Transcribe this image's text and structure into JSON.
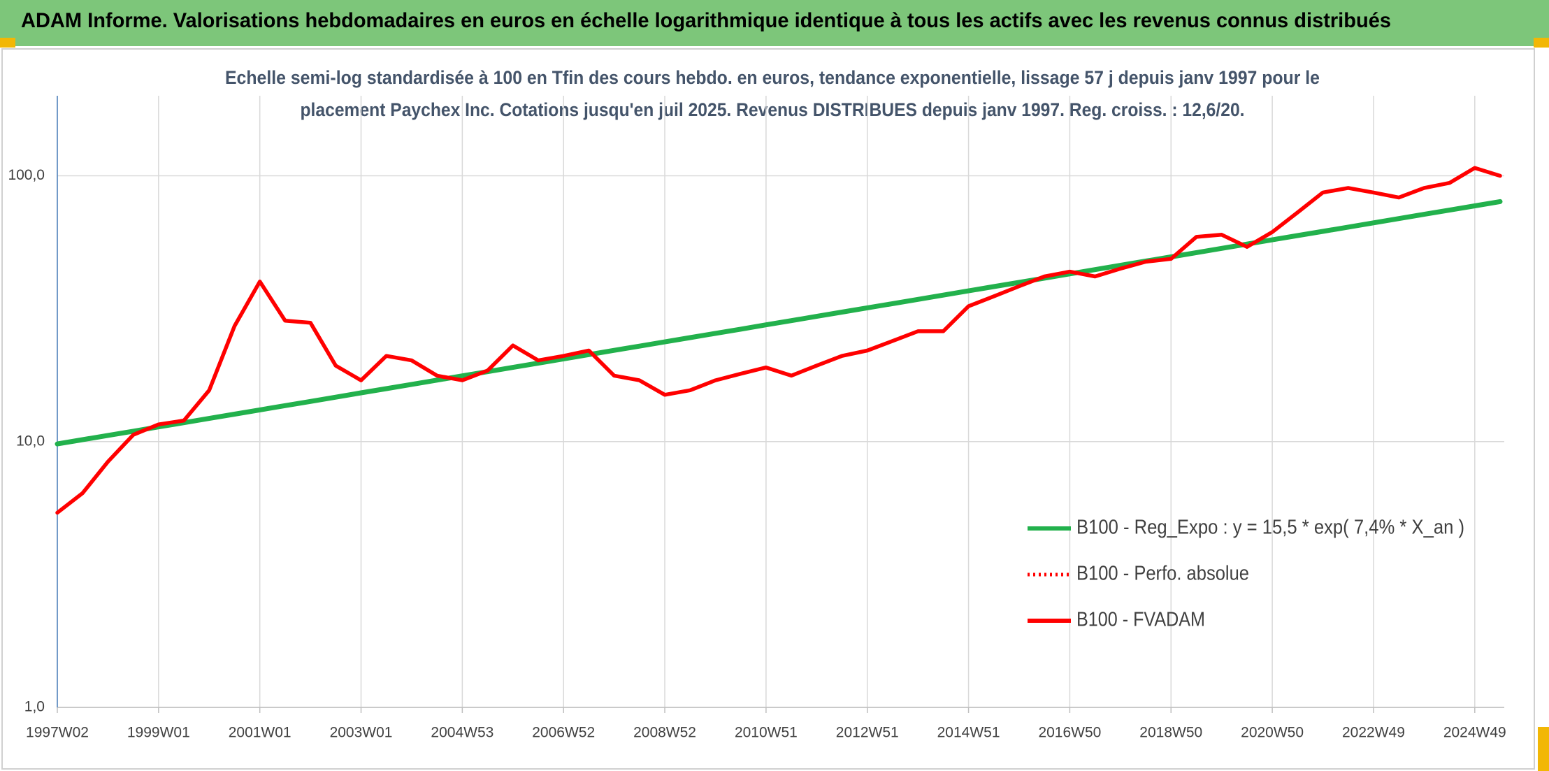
{
  "chart_data": {
    "type": "line",
    "title": "ADAM Informe. Valorisations hebdomadaires en euros en échelle logarithmique identique à tous les actifs avec les revenus connus distribués",
    "subtitle": [
      "Echelle semi-log standardisée à 100 en Tfin des cours hebdo. en euros, tendance exponentielle, lissage 57 j depuis janv 1997 pour le",
      "placement Paychex Inc. Cotations jusqu'en juil 2025. Revenus DISTRIBUES depuis janv 1997. Reg. croiss. : 12,6/20."
    ],
    "categories": [
      "1997W02",
      null,
      null,
      null,
      "1999W01",
      null,
      null,
      null,
      "2001W01",
      null,
      null,
      null,
      "2003W01",
      null,
      null,
      null,
      "2004W53",
      null,
      null,
      null,
      "2006W52",
      null,
      null,
      null,
      "2008W52",
      null,
      null,
      null,
      "2010W51",
      null,
      null,
      null,
      "2012W51",
      null,
      null,
      null,
      "2014W51",
      null,
      null,
      null,
      "2016W50",
      null,
      null,
      null,
      "2018W50",
      null,
      null,
      null,
      "2020W50",
      null,
      null,
      null,
      "2022W49",
      null,
      null,
      null,
      "2024W49",
      null
    ],
    "log_scale": true,
    "grid": true,
    "ylim": [
      1,
      200
    ],
    "yticks": [
      {
        "value": 1,
        "label": "1,0"
      },
      {
        "value": 10,
        "label": "10,0"
      },
      {
        "value": 100,
        "label": "100,0"
      }
    ],
    "legend": "right",
    "series": [
      {
        "name": "B100 - Reg_Expo : y = 15,5 * exp( 7,4% *  X_an )",
        "color": "#22b14c",
        "style": "solid",
        "values": [
          9.8,
          10.17,
          10.55,
          10.94,
          11.36,
          11.78,
          12.22,
          12.68,
          13.16,
          13.65,
          14.16,
          14.69,
          15.25,
          15.82,
          16.41,
          17.03,
          17.67,
          18.33,
          19.02,
          19.73,
          20.47,
          21.24,
          22.04,
          22.86,
          23.72,
          24.61,
          25.53,
          26.49,
          27.49,
          28.52,
          29.59,
          30.7,
          31.85,
          33.04,
          34.28,
          35.57,
          36.9,
          38.29,
          39.72,
          41.21,
          42.76,
          44.36,
          46.03,
          47.75,
          49.54,
          51.4,
          53.33,
          55.33,
          57.41,
          59.56,
          61.8,
          64.11,
          66.52,
          69.01,
          71.6,
          74.29,
          77.07,
          79.97
        ]
      },
      {
        "name": "B100 - Perfo. absolue",
        "color": "#ff0000",
        "style": "dotted",
        "values": [
          5.4,
          6.4,
          8.4,
          10.6,
          11.6,
          12.0,
          15.6,
          27.2,
          40,
          28.5,
          28,
          19.3,
          17,
          21,
          20.2,
          17.7,
          17,
          18.5,
          23,
          20.2,
          21,
          22,
          17.7,
          17,
          15,
          15.6,
          17,
          18,
          19,
          17.7,
          19.3,
          21,
          22,
          23.9,
          26,
          26,
          32.3,
          35.2,
          38.4,
          41.8,
          43.6,
          41.8,
          44.7,
          47.5,
          48.7,
          58.9,
          60,
          54,
          61.4,
          72.8,
          86.5,
          90,
          86.5,
          82.8,
          90,
          94,
          107,
          100
        ]
      },
      {
        "name": "B100 - FVADAM",
        "color": "#ff0000",
        "style": "solid",
        "values": [
          5.4,
          6.4,
          8.4,
          10.6,
          11.6,
          12.0,
          15.6,
          27.2,
          40,
          28.5,
          28,
          19.3,
          17,
          21,
          20.2,
          17.7,
          17,
          18.5,
          23,
          20.2,
          21,
          22,
          17.7,
          17,
          15,
          15.6,
          17,
          18,
          19,
          17.7,
          19.3,
          21,
          22,
          23.9,
          26,
          26,
          32.3,
          35.2,
          38.4,
          41.8,
          43.6,
          41.8,
          44.7,
          47.5,
          48.7,
          58.9,
          60,
          54,
          61.4,
          72.8,
          86.5,
          90,
          86.5,
          82.8,
          90,
          94,
          107,
          100
        ]
      }
    ]
  }
}
